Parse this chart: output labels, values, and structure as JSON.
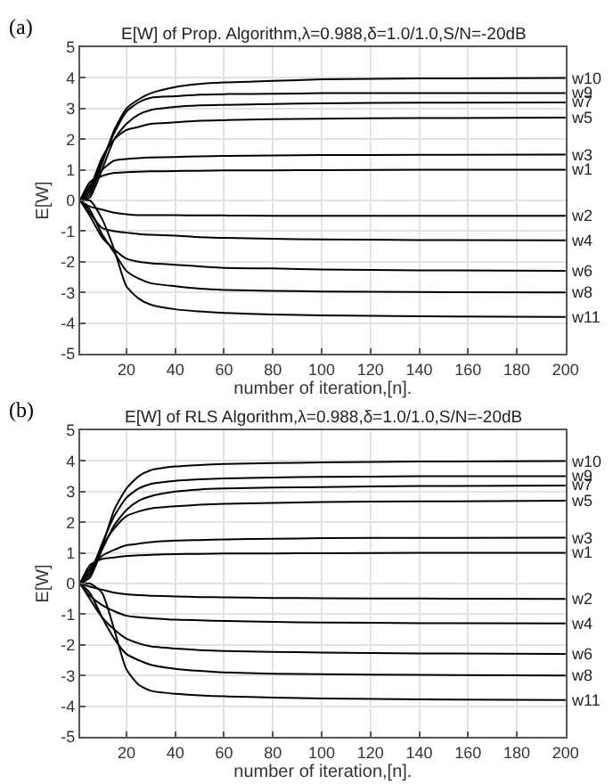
{
  "chart_data": [
    {
      "type": "line",
      "title": "E[W] of Prop. Algorithm,λ=0.988,δ=1.0/1.0,S/N=-20dB",
      "xlabel": "number of iteration,[n].",
      "ylabel": "E[W]",
      "annotations": [
        "(a)"
      ],
      "x": [
        1,
        5,
        10,
        15,
        20,
        25,
        30,
        40,
        50,
        60,
        80,
        100,
        140,
        200
      ],
      "xlim": [
        1,
        200
      ],
      "xticks": [
        20,
        40,
        60,
        80,
        100,
        120,
        140,
        160,
        180,
        200
      ],
      "ylim": [
        -5,
        5
      ],
      "yticks": [
        -5,
        -4,
        -3,
        -2,
        -1,
        0,
        1,
        2,
        3,
        4,
        5
      ],
      "grid": true,
      "legend": false,
      "marker": "none",
      "line_style": "solid",
      "series": [
        {
          "name": "w1",
          "color": "#000000",
          "values": [
            0,
            0.6,
            0.8,
            0.9,
            0.92,
            0.94,
            0.95,
            0.96,
            0.97,
            0.98,
            0.98,
            0.99,
            1.0,
            1.0
          ]
        },
        {
          "name": "w2",
          "color": "#000000",
          "values": [
            0,
            -0.2,
            -0.3,
            -0.4,
            -0.45,
            -0.48,
            -0.48,
            -0.48,
            -0.49,
            -0.49,
            -0.5,
            -0.5,
            -0.5,
            -0.5
          ]
        },
        {
          "name": "w3",
          "color": "#000000",
          "values": [
            0,
            0.5,
            1.0,
            1.3,
            1.35,
            1.38,
            1.4,
            1.42,
            1.44,
            1.45,
            1.47,
            1.48,
            1.49,
            1.5
          ]
        },
        {
          "name": "w4",
          "color": "#000000",
          "values": [
            0,
            -0.4,
            -0.9,
            -1.0,
            -1.05,
            -1.1,
            -1.12,
            -1.15,
            -1.2,
            -1.22,
            -1.25,
            -1.27,
            -1.29,
            -1.3
          ]
        },
        {
          "name": "w5",
          "color": "#000000",
          "values": [
            0,
            0.4,
            1.4,
            2.0,
            2.3,
            2.4,
            2.5,
            2.55,
            2.6,
            2.62,
            2.65,
            2.67,
            2.69,
            2.7
          ]
        },
        {
          "name": "w6",
          "color": "#000000",
          "values": [
            0,
            -0.5,
            -1.2,
            -1.6,
            -1.9,
            -2.0,
            -2.05,
            -2.1,
            -2.15,
            -2.2,
            -2.22,
            -2.25,
            -2.28,
            -2.3
          ]
        },
        {
          "name": "w7",
          "color": "#000000",
          "values": [
            0,
            0.1,
            1.0,
            2.0,
            2.5,
            2.8,
            2.95,
            3.05,
            3.1,
            3.12,
            3.15,
            3.17,
            3.19,
            3.2
          ]
        },
        {
          "name": "w8",
          "color": "#000000",
          "values": [
            0,
            -0.3,
            -1.1,
            -1.7,
            -2.3,
            -2.55,
            -2.7,
            -2.8,
            -2.88,
            -2.92,
            -2.95,
            -2.97,
            -2.99,
            -3.0
          ]
        },
        {
          "name": "w9",
          "color": "#000000",
          "values": [
            0,
            0.3,
            1.3,
            2.2,
            2.9,
            3.2,
            3.35,
            3.4,
            3.45,
            3.47,
            3.48,
            3.5,
            3.5,
            3.5
          ]
        },
        {
          "name": "w10",
          "color": "#000000",
          "values": [
            0,
            0.2,
            1.2,
            2.3,
            3.0,
            3.3,
            3.5,
            3.7,
            3.8,
            3.85,
            3.9,
            3.95,
            3.98,
            4.0
          ]
        },
        {
          "name": "w11",
          "color": "#000000",
          "values": [
            0,
            0,
            -0.6,
            -1.6,
            -2.8,
            -3.2,
            -3.4,
            -3.55,
            -3.62,
            -3.67,
            -3.72,
            -3.75,
            -3.78,
            -3.8
          ]
        }
      ]
    },
    {
      "type": "line",
      "title": "E[W] of RLS Algorithm,λ=0.988,δ=1.0/1.0,S/N=-20dB",
      "xlabel": "number of iteration,[n].",
      "ylabel": "E[W]",
      "annotations": [
        "(b)"
      ],
      "x": [
        1,
        5,
        10,
        15,
        20,
        25,
        30,
        40,
        50,
        60,
        80,
        100,
        140,
        200
      ],
      "xlim": [
        1,
        200
      ],
      "xticks": [
        20,
        40,
        60,
        80,
        100,
        120,
        140,
        160,
        180,
        200
      ],
      "ylim": [
        -5,
        5
      ],
      "yticks": [
        -5,
        -4,
        -3,
        -2,
        -1,
        0,
        1,
        2,
        3,
        4,
        5
      ],
      "grid": true,
      "legend": false,
      "marker": "none",
      "line_style": "solid",
      "series": [
        {
          "name": "w1",
          "color": "#000000",
          "values": [
            0,
            0.6,
            0.8,
            0.85,
            0.9,
            0.92,
            0.94,
            0.96,
            0.97,
            0.98,
            0.98,
            0.99,
            1.0,
            1.0
          ]
        },
        {
          "name": "w2",
          "color": "#000000",
          "values": [
            0,
            -0.1,
            -0.2,
            -0.3,
            -0.35,
            -0.38,
            -0.4,
            -0.42,
            -0.44,
            -0.45,
            -0.47,
            -0.48,
            -0.49,
            -0.5
          ]
        },
        {
          "name": "w3",
          "color": "#000000",
          "values": [
            0,
            0.5,
            0.9,
            1.1,
            1.25,
            1.3,
            1.35,
            1.4,
            1.42,
            1.44,
            1.46,
            1.48,
            1.49,
            1.5
          ]
        },
        {
          "name": "w4",
          "color": "#000000",
          "values": [
            0,
            -0.4,
            -0.7,
            -0.9,
            -1.05,
            -1.1,
            -1.13,
            -1.18,
            -1.2,
            -1.22,
            -1.25,
            -1.27,
            -1.29,
            -1.3
          ]
        },
        {
          "name": "w5",
          "color": "#000000",
          "values": [
            0,
            0.4,
            1.2,
            1.8,
            2.2,
            2.35,
            2.45,
            2.52,
            2.57,
            2.6,
            2.63,
            2.66,
            2.68,
            2.7
          ]
        },
        {
          "name": "w6",
          "color": "#000000",
          "values": [
            0,
            -0.5,
            -1.1,
            -1.5,
            -1.8,
            -1.95,
            -2.05,
            -2.12,
            -2.17,
            -2.2,
            -2.23,
            -2.25,
            -2.28,
            -2.3
          ]
        },
        {
          "name": "w7",
          "color": "#000000",
          "values": [
            0,
            0.2,
            1.1,
            1.9,
            2.4,
            2.7,
            2.85,
            3.0,
            3.07,
            3.1,
            3.13,
            3.15,
            3.18,
            3.2
          ]
        },
        {
          "name": "w8",
          "color": "#000000",
          "values": [
            0,
            -0.3,
            -1.1,
            -1.8,
            -2.3,
            -2.5,
            -2.65,
            -2.78,
            -2.85,
            -2.9,
            -2.94,
            -2.96,
            -2.98,
            -3.0
          ]
        },
        {
          "name": "w9",
          "color": "#000000",
          "values": [
            0,
            0.3,
            1.3,
            2.2,
            2.8,
            3.1,
            3.25,
            3.35,
            3.4,
            3.43,
            3.46,
            3.48,
            3.5,
            3.5
          ]
        },
        {
          "name": "w10",
          "color": "#000000",
          "values": [
            0,
            0.2,
            1.2,
            2.4,
            3.1,
            3.5,
            3.7,
            3.82,
            3.87,
            3.9,
            3.93,
            3.95,
            3.98,
            4.0
          ]
        },
        {
          "name": "w11",
          "color": "#000000",
          "values": [
            0,
            0,
            -0.3,
            -1.5,
            -2.8,
            -3.3,
            -3.5,
            -3.6,
            -3.65,
            -3.68,
            -3.72,
            -3.75,
            -3.78,
            -3.8
          ]
        }
      ]
    }
  ]
}
